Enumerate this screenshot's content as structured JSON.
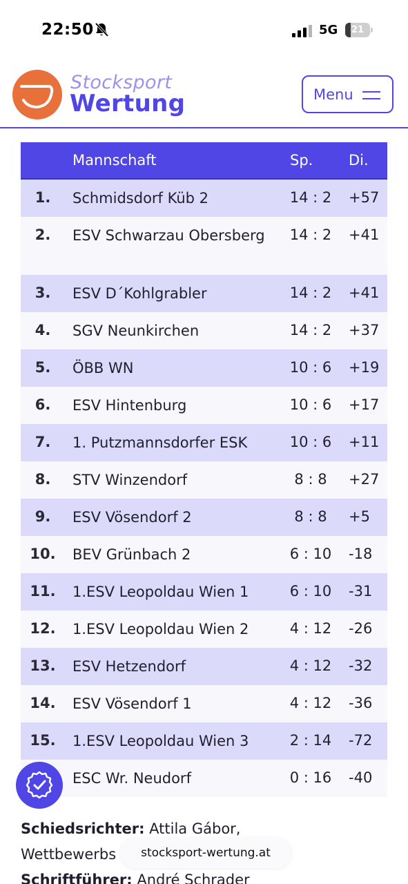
{
  "status_bar": {
    "time": "22:50",
    "network": "5G",
    "battery": "21",
    "battery_level": 0.21
  },
  "header": {
    "logo_line1": "Stocksport",
    "logo_line2": "Wertung",
    "menu_label": "Menu",
    "accent_color": "#4f46e5",
    "logo_color": "#e8703a"
  },
  "table": {
    "headers": {
      "team": "Mannschaft",
      "games": "Sp.",
      "diff": "Di."
    },
    "rows": [
      {
        "rank": "1.",
        "team": "Schmidsdorf Küb 2",
        "games": "14 : 2",
        "diff": "+57"
      },
      {
        "rank": "2.",
        "team": "ESV Schwarzau Obersberg",
        "games": "14 : 2",
        "diff": "+41"
      },
      {
        "rank": "3.",
        "team": "ESV D´Kohlgrabler",
        "games": "14 : 2",
        "diff": "+41"
      },
      {
        "rank": "4.",
        "team": "SGV Neunkirchen",
        "games": "14 : 2",
        "diff": "+37"
      },
      {
        "rank": "5.",
        "team": "ÖBB WN",
        "games": "10 : 6",
        "diff": "+19"
      },
      {
        "rank": "6.",
        "team": "ESV Hintenburg",
        "games": "10 : 6",
        "diff": "+17"
      },
      {
        "rank": "7.",
        "team": "1. Putzmannsdorfer ESK",
        "games": "10 : 6",
        "diff": "+11"
      },
      {
        "rank": "8.",
        "team": "STV Winzendorf",
        "games": "8 : 8",
        "diff": "+27"
      },
      {
        "rank": "9.",
        "team": "ESV Vösendorf 2",
        "games": "8 : 8",
        "diff": "+5"
      },
      {
        "rank": "10.",
        "team": "BEV Grünbach 2",
        "games": "6 : 10",
        "diff": "-18"
      },
      {
        "rank": "11.",
        "team": "1.ESV Leopoldau Wien 1",
        "games": "6 : 10",
        "diff": "-31"
      },
      {
        "rank": "12.",
        "team": "1.ESV Leopoldau Wien 2",
        "games": "4 : 12",
        "diff": "-26"
      },
      {
        "rank": "13.",
        "team": "ESV Hetzendorf",
        "games": "4 : 12",
        "diff": "-32"
      },
      {
        "rank": "14.",
        "team": "ESV Vösendorf 1",
        "games": "4 : 12",
        "diff": "-36"
      },
      {
        "rank": "15.",
        "team": "1.ESV Leopoldau Wien 3",
        "games": "2 : 14",
        "diff": "-72"
      },
      {
        "rank": "",
        "team": "ESC Wr. Neudorf",
        "games": "0 : 16",
        "diff": "-40"
      }
    ]
  },
  "officials": {
    "referee_label": "Schiedsrichter:",
    "referee_value": "Attila Gábor,",
    "competition_label": "Wettbewerbs",
    "recorder_label": "Schriftführer:",
    "recorder_value": "André Schrader"
  },
  "url_bar": {
    "domain": "stocksport-wertung.at"
  }
}
